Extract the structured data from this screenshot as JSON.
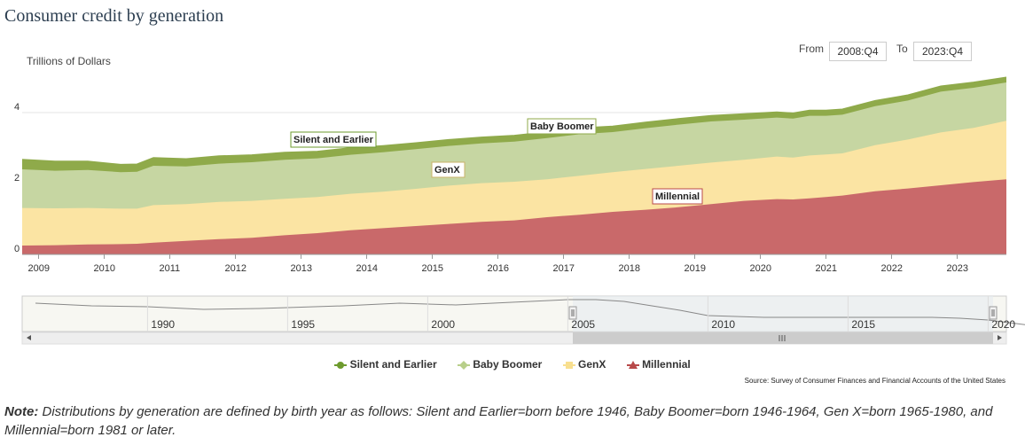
{
  "title": "Consumer credit by generation",
  "range": {
    "from_label": "From",
    "from_value": "2008:Q4",
    "to_label": "To",
    "to_value": "2023:Q4"
  },
  "chart_data": {
    "type": "area",
    "stacked": true,
    "ylabel": "Trillions of Dollars",
    "ylim": [
      0,
      5.3
    ],
    "yticks": [
      "0",
      "2",
      "4"
    ],
    "xlim": [
      2008.75,
      2023.75
    ],
    "xticks": [
      "2009",
      "2010",
      "2011",
      "2012",
      "2013",
      "2014",
      "2015",
      "2016",
      "2017",
      "2018",
      "2019",
      "2020",
      "2021",
      "2022",
      "2023"
    ],
    "x": [
      2008.75,
      2009.25,
      2009.75,
      2010.25,
      2010.5,
      2010.75,
      2011.25,
      2011.75,
      2012.25,
      2012.75,
      2013.25,
      2013.75,
      2014.25,
      2014.75,
      2015.25,
      2015.75,
      2016.25,
      2016.75,
      2017.25,
      2017.75,
      2018.25,
      2018.75,
      2019.25,
      2019.75,
      2020.25,
      2020.5,
      2020.75,
      2021.0,
      2021.25,
      2021.75,
      2022.25,
      2022.75,
      2023.25,
      2023.75
    ],
    "series": [
      {
        "name": "Millennial",
        "color": "#c9696a",
        "values": [
          0.25,
          0.26,
          0.28,
          0.29,
          0.3,
          0.33,
          0.38,
          0.43,
          0.47,
          0.54,
          0.6,
          0.68,
          0.74,
          0.8,
          0.86,
          0.92,
          0.96,
          1.05,
          1.12,
          1.2,
          1.26,
          1.33,
          1.42,
          1.51,
          1.56,
          1.55,
          1.58,
          1.62,
          1.66,
          1.78,
          1.86,
          1.95,
          2.04,
          2.12
        ]
      },
      {
        "name": "GenX",
        "color": "#fbe4a3",
        "values": [
          1.06,
          1.04,
          1.03,
          1.0,
          0.99,
          1.06,
          1.04,
          1.05,
          1.04,
          1.03,
          1.02,
          1.03,
          1.03,
          1.05,
          1.08,
          1.09,
          1.09,
          1.07,
          1.1,
          1.12,
          1.15,
          1.17,
          1.17,
          1.16,
          1.2,
          1.18,
          1.21,
          1.2,
          1.19,
          1.3,
          1.38,
          1.49,
          1.53,
          1.65
        ]
      },
      {
        "name": "Baby Boomer",
        "color": "#c6d6a2",
        "values": [
          1.09,
          1.06,
          1.07,
          1.03,
          1.04,
          1.11,
          1.06,
          1.08,
          1.09,
          1.1,
          1.09,
          1.1,
          1.11,
          1.12,
          1.12,
          1.12,
          1.13,
          1.16,
          1.17,
          1.13,
          1.15,
          1.16,
          1.16,
          1.13,
          1.1,
          1.1,
          1.12,
          1.09,
          1.09,
          1.1,
          1.1,
          1.15,
          1.13,
          1.08
        ]
      },
      {
        "name": "Silent and Earlier",
        "color": "#8faa4a",
        "values": [
          0.28,
          0.27,
          0.25,
          0.22,
          0.22,
          0.23,
          0.22,
          0.22,
          0.21,
          0.21,
          0.2,
          0.2,
          0.19,
          0.18,
          0.18,
          0.18,
          0.18,
          0.18,
          0.18,
          0.17,
          0.17,
          0.17,
          0.17,
          0.17,
          0.16,
          0.16,
          0.16,
          0.16,
          0.16,
          0.16,
          0.16,
          0.16,
          0.16,
          0.15
        ]
      }
    ],
    "annotations": [
      "Silent and Earlier",
      "Baby Boomer",
      "GenX",
      "Millennial"
    ],
    "navigator_ticks": [
      "1990",
      "1995",
      "2000",
      "2005",
      "2010",
      "2015",
      "2020"
    ]
  },
  "legend": {
    "items": [
      {
        "label": "Silent and Earlier",
        "color": "#6e9b2e",
        "marker": "circle"
      },
      {
        "label": "Baby Boomer",
        "color": "#b8cf8a",
        "marker": "diamond"
      },
      {
        "label": "GenX",
        "color": "#f8df8f",
        "marker": "square"
      },
      {
        "label": "Millennial",
        "color": "#b84a4a",
        "marker": "triangle"
      }
    ]
  },
  "source": "Source: Survey of Consumer Finances and Financial Accounts of the United States",
  "note": {
    "label": "Note:",
    "text": " Distributions by generation are defined by birth year as follows: Silent and Earlier=born before 1946, Baby Boomer=born 1946-1964, Gen X=born 1965-1980, and Millennial=born 1981 or later."
  }
}
